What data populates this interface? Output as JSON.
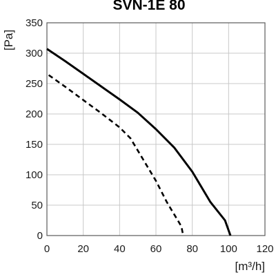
{
  "chart_data": {
    "type": "line",
    "title": "SVN-1E 80",
    "xlabel": "[m³/h]",
    "ylabel": "[Pa]",
    "xlim": [
      0,
      120
    ],
    "ylim": [
      0,
      350
    ],
    "x_ticks": [
      "0",
      "20",
      "40",
      "60",
      "80",
      "100",
      "120"
    ],
    "y_ticks": [
      "0",
      "50",
      "100",
      "150",
      "200",
      "250",
      "300",
      "350"
    ],
    "grid": true,
    "series": [
      {
        "style": "solid",
        "color": "#000000",
        "x": [
          0,
          10,
          20,
          30,
          40,
          50,
          60,
          70,
          80,
          90,
          98,
          101
        ],
        "y": [
          307,
          287,
          266,
          245,
          224,
          202,
          175,
          145,
          105,
          55,
          25,
          0
        ]
      },
      {
        "style": "dashed",
        "color": "#000000",
        "x": [
          1,
          10,
          20,
          30,
          40,
          46,
          52,
          60,
          66,
          71,
          74,
          75
        ],
        "y": [
          264,
          245,
          223,
          201,
          178,
          160,
          130,
          90,
          55,
          30,
          15,
          0
        ]
      }
    ]
  }
}
